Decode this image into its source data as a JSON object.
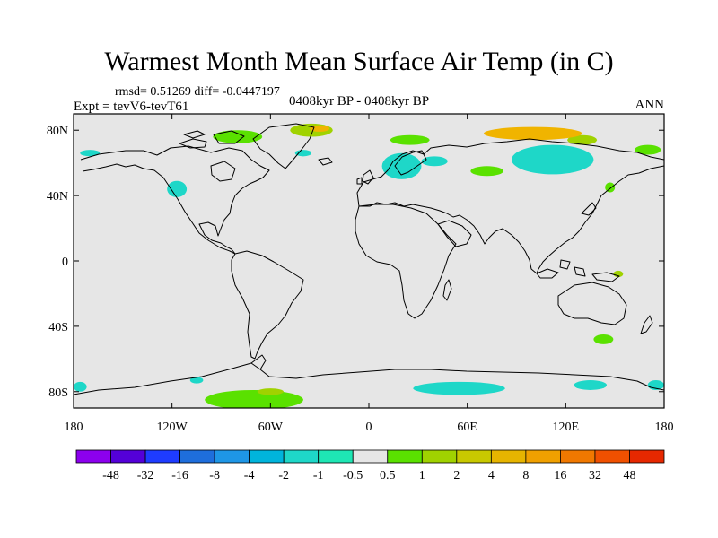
{
  "header": {
    "title": "Warmest Month Mean Surface Air Temp (in C)",
    "stats": "rmsd= 0.51269 diff= -0.0447197",
    "experiment": "Expt = tevV6-tevT61",
    "period": "0408kyr BP - 0408kyr BP",
    "season": "ANN"
  },
  "map": {
    "projection": "cylindrical-equidistant",
    "lon_range": [
      -180,
      180
    ],
    "lat_range": [
      -90,
      90
    ],
    "background_color": "#e6e6e6",
    "lat_ticks": [
      {
        "value": 80,
        "label": "80N"
      },
      {
        "value": 40,
        "label": "40N"
      },
      {
        "value": 0,
        "label": "0"
      },
      {
        "value": -40,
        "label": "40S"
      },
      {
        "value": -80,
        "label": "80S"
      }
    ],
    "lon_ticks": [
      {
        "value": -180,
        "label": "180"
      },
      {
        "value": -120,
        "label": "120W"
      },
      {
        "value": -60,
        "label": "60W"
      },
      {
        "value": 0,
        "label": "0"
      },
      {
        "value": 60,
        "label": "60E"
      },
      {
        "value": 120,
        "label": "120E"
      },
      {
        "value": 180,
        "label": "180"
      }
    ],
    "anomalies": [
      {
        "lon": 130,
        "lat": 74,
        "rx": 9,
        "ry": 3,
        "color": "#a0d200"
      },
      {
        "lon": 100,
        "lat": 78,
        "rx": 30,
        "ry": 4,
        "color": "#f0b400"
      },
      {
        "lon": 112,
        "lat": 62,
        "rx": 25,
        "ry": 9,
        "color": "#1ed7c8"
      },
      {
        "lon": 72,
        "lat": 55,
        "rx": 10,
        "ry": 3,
        "color": "#5ae100"
      },
      {
        "lon": 20,
        "lat": 58,
        "rx": 12,
        "ry": 8,
        "color": "#1ed7c8"
      },
      {
        "lon": 25,
        "lat": 74,
        "rx": 12,
        "ry": 3,
        "color": "#5ae100"
      },
      {
        "lon": -35,
        "lat": 80,
        "rx": 13,
        "ry": 4,
        "color": "#a0d200"
      },
      {
        "lon": -30,
        "lat": 81,
        "rx": 6,
        "ry": 2,
        "color": "#f0b400"
      },
      {
        "lon": -80,
        "lat": 76,
        "rx": 15,
        "ry": 4,
        "color": "#5ae100"
      },
      {
        "lon": -117,
        "lat": 44,
        "rx": 6,
        "ry": 5,
        "color": "#1ed7c8"
      },
      {
        "lon": -40,
        "lat": 66,
        "rx": 5,
        "ry": 2,
        "color": "#1ed7c8"
      },
      {
        "lon": 170,
        "lat": 68,
        "rx": 8,
        "ry": 3,
        "color": "#5ae100"
      },
      {
        "lon": -170,
        "lat": 66,
        "rx": 6,
        "ry": 2,
        "color": "#1ed7c8"
      },
      {
        "lon": 40,
        "lat": 61,
        "rx": 8,
        "ry": 3,
        "color": "#1ed7c8"
      },
      {
        "lon": 143,
        "lat": -48,
        "rx": 6,
        "ry": 3,
        "color": "#5ae100"
      },
      {
        "lon": 152,
        "lat": -8,
        "rx": 3,
        "ry": 2,
        "color": "#a0d200"
      },
      {
        "lon": 147,
        "lat": 45,
        "rx": 3,
        "ry": 3,
        "color": "#5ae100"
      },
      {
        "lon": -70,
        "lat": -85,
        "rx": 30,
        "ry": 6,
        "color": "#5ae100"
      },
      {
        "lon": -60,
        "lat": -80,
        "rx": 8,
        "ry": 2,
        "color": "#a0d200"
      },
      {
        "lon": 55,
        "lat": -78,
        "rx": 28,
        "ry": 4,
        "color": "#1ed7c8"
      },
      {
        "lon": 135,
        "lat": -76,
        "rx": 10,
        "ry": 3,
        "color": "#1ed7c8"
      },
      {
        "lon": 175,
        "lat": -76,
        "rx": 5,
        "ry": 3,
        "color": "#1ed7c8"
      },
      {
        "lon": -176,
        "lat": -77,
        "rx": 4,
        "ry": 3,
        "color": "#1ed7c8"
      },
      {
        "lon": -105,
        "lat": -73,
        "rx": 4,
        "ry": 2,
        "color": "#1ed7c8"
      }
    ]
  },
  "colorbar": {
    "colors": [
      "#8c00ee",
      "#5400d8",
      "#1e3cff",
      "#1e6edc",
      "#1e96e6",
      "#00b4dc",
      "#1ed7c8",
      "#1ee6b4",
      "#e6e6e6",
      "#5ae100",
      "#a0d200",
      "#c8c800",
      "#e6b400",
      "#f0a000",
      "#f07800",
      "#f05000",
      "#e62800"
    ],
    "labels": [
      "-48",
      "-32",
      "-16",
      "-8",
      "-4",
      "-2",
      "-1",
      "-0.5",
      "0.5",
      "1",
      "2",
      "4",
      "8",
      "16",
      "32",
      "48"
    ]
  }
}
